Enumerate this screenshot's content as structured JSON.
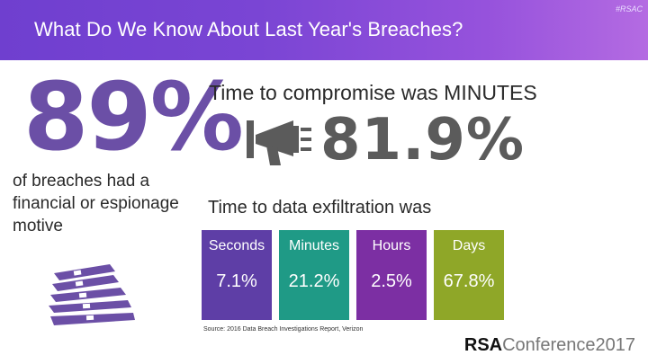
{
  "header": {
    "title": "What Do We Know About Last Year's Breaches?",
    "hashtag": "#RSAC"
  },
  "left": {
    "big_stat": "89%",
    "description": "of breaches had a financial or espionage motive",
    "icon": "money-stack-icon"
  },
  "right": {
    "compromise_label": "Time to compromise was MINUTES",
    "compromise_stat": "81.9%",
    "icon": "megaphone-icon",
    "exfiltration_label": "Time to data exfiltration was",
    "bars": [
      {
        "category": "Seconds",
        "value": "7.1%",
        "color": "#5e3ea6"
      },
      {
        "category": "Minutes",
        "value": "21.2%",
        "color": "#1f9a86"
      },
      {
        "category": "Hours",
        "value": "2.5%",
        "color": "#7c2fa3"
      },
      {
        "category": "Days",
        "value": "67.8%",
        "color": "#8fa728"
      }
    ]
  },
  "footer": {
    "source": "Source: 2016 Data Breach Investigations Report, Verizon",
    "logo_bold": "RSA",
    "logo_rest": "Conference2017"
  },
  "colors": {
    "header_start": "#6f3fcf",
    "header_end": "#b46be2",
    "big_stat": "#6b4fa6"
  }
}
